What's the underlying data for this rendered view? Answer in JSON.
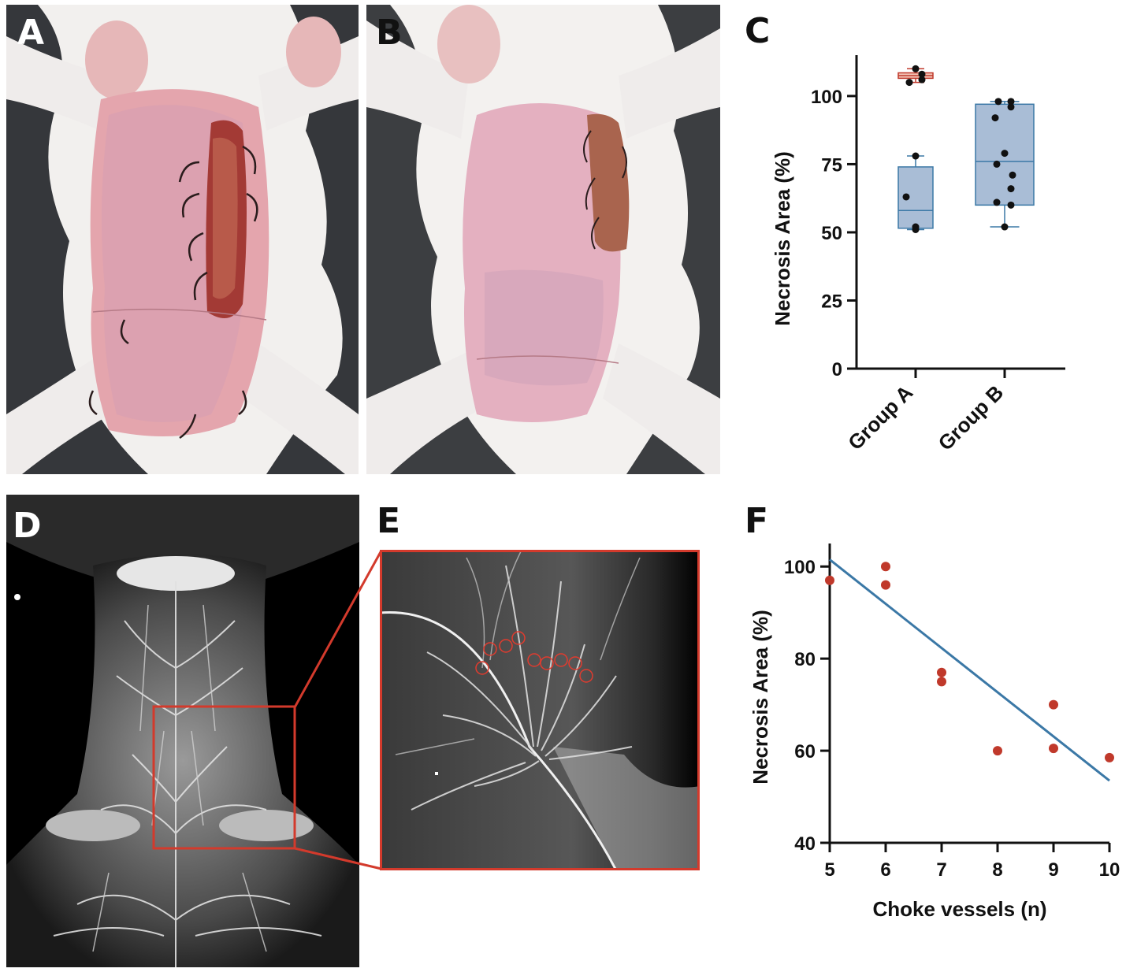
{
  "panels": {
    "a_label": "A",
    "b_label": "B",
    "c_label": "C",
    "d_label": "D",
    "e_label": "E",
    "f_label": "F"
  },
  "colors": {
    "group_a_box": "#c0392b",
    "group_a_fill": "#f2c4b6",
    "group_b_box": "#3b78a6",
    "group_b_fill": "#a9bdd6",
    "scatter_point": "#c0392b",
    "fit_line": "#3b78a6",
    "zoom_box": "#d33a2c"
  },
  "chart_data": [
    {
      "type": "box",
      "panel": "C",
      "ylabel": "Necrosis Area (%)",
      "ylim": [
        0,
        115
      ],
      "yticks": [
        "0",
        "25",
        "50",
        "75",
        "100"
      ],
      "categories": [
        "Group A",
        "Group B"
      ],
      "series": [
        {
          "category": "Group A",
          "box": {
            "min": 51,
            "q1": 51.5,
            "median": 58,
            "q3": 74,
            "max": 78
          },
          "points": [
            78,
            63,
            52,
            51
          ],
          "upper_box": {
            "min": 105,
            "q1": 106.5,
            "median": 107.5,
            "q3": 108.5,
            "max": 110
          },
          "upper_points": [
            110,
            108,
            105,
            106
          ]
        },
        {
          "category": "Group B",
          "box": {
            "min": 52,
            "q1": 60,
            "median": 76,
            "q3": 97,
            "max": 98
          },
          "points": [
            98,
            98,
            96,
            92,
            79,
            75,
            71,
            66,
            61,
            60,
            52
          ]
        }
      ]
    },
    {
      "type": "scatter",
      "panel": "F",
      "xlabel": "Choke vessels (n)",
      "ylabel": "Necrosis Area (%)",
      "xlim": [
        5,
        10
      ],
      "ylim": [
        40,
        105
      ],
      "xticks": [
        "5",
        "6",
        "7",
        "8",
        "9",
        "10"
      ],
      "yticks": [
        "40",
        "60",
        "80",
        "100"
      ],
      "points": [
        {
          "x": 5,
          "y": 97
        },
        {
          "x": 6,
          "y": 100
        },
        {
          "x": 6,
          "y": 96
        },
        {
          "x": 7,
          "y": 77
        },
        {
          "x": 7,
          "y": 75
        },
        {
          "x": 8,
          "y": 60
        },
        {
          "x": 9,
          "y": 70
        },
        {
          "x": 9,
          "y": 60.5
        },
        {
          "x": 10,
          "y": 58.5
        }
      ],
      "fit_line": {
        "x1": 5,
        "y1": 101.5,
        "x2": 10,
        "y2": 53.5
      }
    }
  ]
}
